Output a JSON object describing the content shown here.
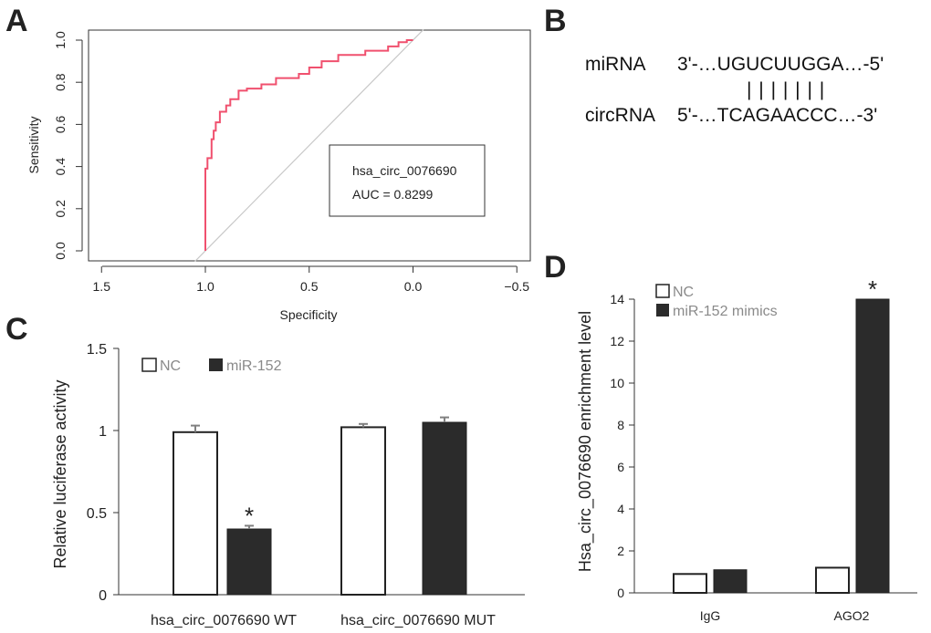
{
  "panel_labels": [
    "A",
    "B",
    "C",
    "D"
  ],
  "colors": {
    "roc": "#f0506e",
    "diagonal": "#c8c8c8",
    "dark_bar": "#2b2b2b",
    "white_bar": "#ffffff",
    "error_bar": "#808080"
  },
  "panel_b": {
    "mirna_label": "miRNA",
    "mirna_seq": "3'-…UGUCUUGGA…-5'",
    "pairing": "| | | | | | |",
    "circrna_label": "circRNA",
    "circrna_seq": "5'-…TCAGAACCC…-3'"
  },
  "chart_data": [
    {
      "panel": "A",
      "type": "line",
      "title": "",
      "xlabel": "Specificity",
      "ylabel": "Sensitivity",
      "xlim": [
        1.5,
        -0.5
      ],
      "ylim": [
        0.0,
        1.0
      ],
      "x_ticks": [
        "1.5",
        "1.0",
        "0.5",
        "0.0",
        "−0.5"
      ],
      "y_ticks": [
        "0.0",
        "0.2",
        "0.4",
        "0.6",
        "0.8",
        "1.0"
      ],
      "legend": {
        "name": "hsa_circ_0076690",
        "auc_text": "AUC = 0.8299"
      },
      "series": [
        {
          "name": "ROC",
          "x": [
            1.0,
            1.0,
            0.99,
            0.99,
            0.97,
            0.97,
            0.96,
            0.96,
            0.95,
            0.95,
            0.93,
            0.93,
            0.9,
            0.9,
            0.88,
            0.88,
            0.84,
            0.84,
            0.8,
            0.8,
            0.73,
            0.73,
            0.66,
            0.66,
            0.55,
            0.55,
            0.5,
            0.5,
            0.44,
            0.44,
            0.36,
            0.36,
            0.23,
            0.23,
            0.12,
            0.12,
            0.07,
            0.07,
            0.03,
            0.03,
            0.0
          ],
          "y": [
            0.0,
            0.39,
            0.39,
            0.44,
            0.44,
            0.53,
            0.53,
            0.57,
            0.57,
            0.61,
            0.61,
            0.66,
            0.66,
            0.69,
            0.69,
            0.72,
            0.72,
            0.76,
            0.76,
            0.77,
            0.77,
            0.79,
            0.79,
            0.82,
            0.82,
            0.84,
            0.84,
            0.87,
            0.87,
            0.9,
            0.9,
            0.93,
            0.93,
            0.95,
            0.95,
            0.97,
            0.97,
            0.99,
            0.99,
            1.0,
            1.0
          ]
        },
        {
          "name": "reference",
          "x": [
            1.05,
            -0.05
          ],
          "y": [
            -0.05,
            1.05
          ]
        }
      ]
    },
    {
      "panel": "C",
      "type": "bar",
      "title": "",
      "xlabel": "",
      "ylabel": "Relative luciferase activity",
      "ylim": [
        0,
        1.5
      ],
      "y_ticks": [
        "0",
        "0.5",
        "1",
        "1.5"
      ],
      "categories": [
        "hsa_circ_0076690 WT",
        "hsa_circ_0076690 MUT"
      ],
      "series": [
        {
          "name": "NC",
          "values": [
            0.99,
            1.02
          ],
          "errors": [
            0.04,
            0.02
          ]
        },
        {
          "name": "miR-152",
          "values": [
            0.4,
            1.05
          ],
          "errors": [
            0.02,
            0.03
          ]
        }
      ],
      "annotations": [
        {
          "category": 0,
          "series": 1,
          "text": "*"
        }
      ]
    },
    {
      "panel": "D",
      "type": "bar",
      "title": "",
      "xlabel": "",
      "ylabel": "Hsa_circ_0076690 enrichment level",
      "ylim": [
        0,
        14
      ],
      "y_ticks": [
        "0",
        "2",
        "4",
        "6",
        "8",
        "10",
        "12",
        "14"
      ],
      "categories": [
        "IgG",
        "AGO2"
      ],
      "series": [
        {
          "name": "NC",
          "values": [
            0.9,
            1.2
          ]
        },
        {
          "name": "miR-152 mimics",
          "values": [
            1.1,
            14.0
          ]
        }
      ],
      "annotations": [
        {
          "category": 1,
          "series": 1,
          "text": "*"
        }
      ]
    }
  ]
}
